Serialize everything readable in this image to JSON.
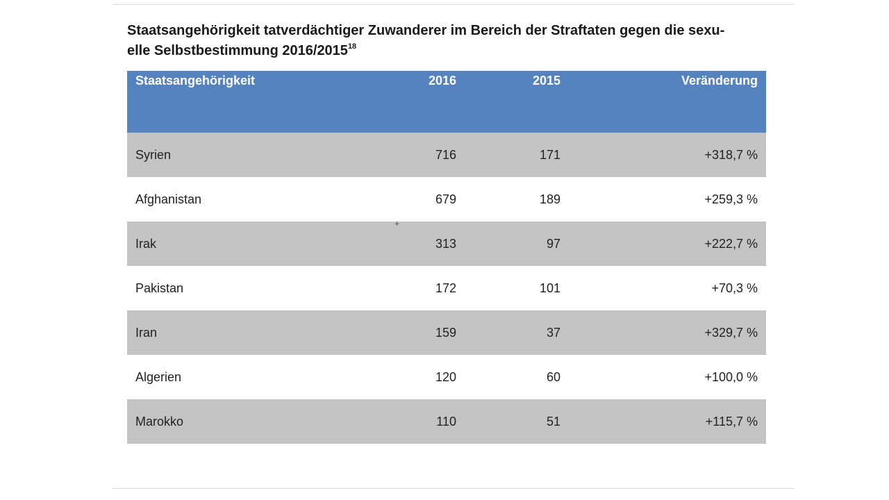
{
  "title": {
    "line1": "Staatsangehörigkeit tatverdächtiger Zuwanderer im Bereich der Straftaten gegen die sexu-",
    "line2": "elle Selbstbestimmung 2016/2015",
    "footnote": "18"
  },
  "table": {
    "headers": {
      "nationality": "Staatsangehörigkeit",
      "year_2016": "2016",
      "year_2015": "2015",
      "change": "Veränderung"
    },
    "rows": [
      {
        "nationality": "Syrien",
        "v2016": "716",
        "v2015": "171",
        "change": "+318,7 %"
      },
      {
        "nationality": "Afghanistan",
        "v2016": "679",
        "v2015": "189",
        "change": "+259,3 %"
      },
      {
        "nationality": "Irak",
        "v2016": "313",
        "v2015": "97",
        "change": "+222,7 %"
      },
      {
        "nationality": "Pakistan",
        "v2016": "172",
        "v2015": "101",
        "change": "+70,3 %"
      },
      {
        "nationality": "Iran",
        "v2016": "159",
        "v2015": "37",
        "change": "+329,7 %"
      },
      {
        "nationality": "Algerien",
        "v2016": "120",
        "v2015": "60",
        "change": "+100,0 %"
      },
      {
        "nationality": "Marokko",
        "v2016": "110",
        "v2015": "51",
        "change": "+115,7 %"
      }
    ]
  },
  "colors": {
    "header_bg": "#5483bf",
    "shaded_row_bg": "#c3c3c3",
    "plain_row_bg": "#ffffff"
  },
  "icons": {
    "cursor": "crosshair-cursor-icon"
  }
}
